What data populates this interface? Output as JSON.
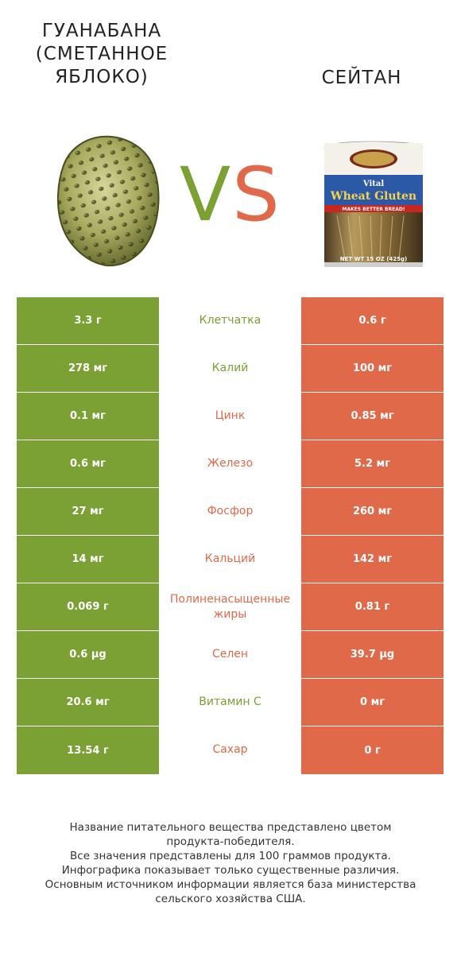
{
  "titles": {
    "left": "ГУАНАБАНА (СМЕТАННОЕ ЯБЛОКО)",
    "right": "СЕЙТАН"
  },
  "vs": {
    "v": "V",
    "s": "S",
    "v_color": "#7ba033",
    "s_color": "#e0694a"
  },
  "colors": {
    "left": "#7ba033",
    "right": "#e0694a"
  },
  "can_label": {
    "brand": "Vital",
    "product": "Wheat Gluten",
    "banner": "MAKES BETTER BREAD!",
    "net": "NET WT 15 OZ (425g)"
  },
  "rows": [
    {
      "left": "3.3 г",
      "label": "Клетчатка",
      "right": "0.6 г",
      "winner": "left"
    },
    {
      "left": "278 мг",
      "label": "Калий",
      "right": "100 мг",
      "winner": "left"
    },
    {
      "left": "0.1 мг",
      "label": "Цинк",
      "right": "0.85 мг",
      "winner": "right"
    },
    {
      "left": "0.6 мг",
      "label": "Железо",
      "right": "5.2 мг",
      "winner": "right"
    },
    {
      "left": "27 мг",
      "label": "Фосфор",
      "right": "260 мг",
      "winner": "right"
    },
    {
      "left": "14 мг",
      "label": "Кальций",
      "right": "142 мг",
      "winner": "right"
    },
    {
      "left": "0.069 г",
      "label": "Полиненасыщенные жиры",
      "right": "0.81 г",
      "winner": "right"
    },
    {
      "left": "0.6 µg",
      "label": "Селен",
      "right": "39.7 µg",
      "winner": "right"
    },
    {
      "left": "20.6 мг",
      "label": "Витамин C",
      "right": "0 мг",
      "winner": "left"
    },
    {
      "left": "13.54 г",
      "label": "Сахар",
      "right": "0 г",
      "winner": "right"
    }
  ],
  "footer": {
    "line1": "Название питательного вещества представлено цветом",
    "line2": "продукта-победителя.",
    "line3": "Все значения представлены для 100 граммов продукта.",
    "line4": "Инфографика показывает только существенные различия.",
    "line5": "Основным источником информации является база министерства",
    "line6": "сельского хозяйства США."
  }
}
